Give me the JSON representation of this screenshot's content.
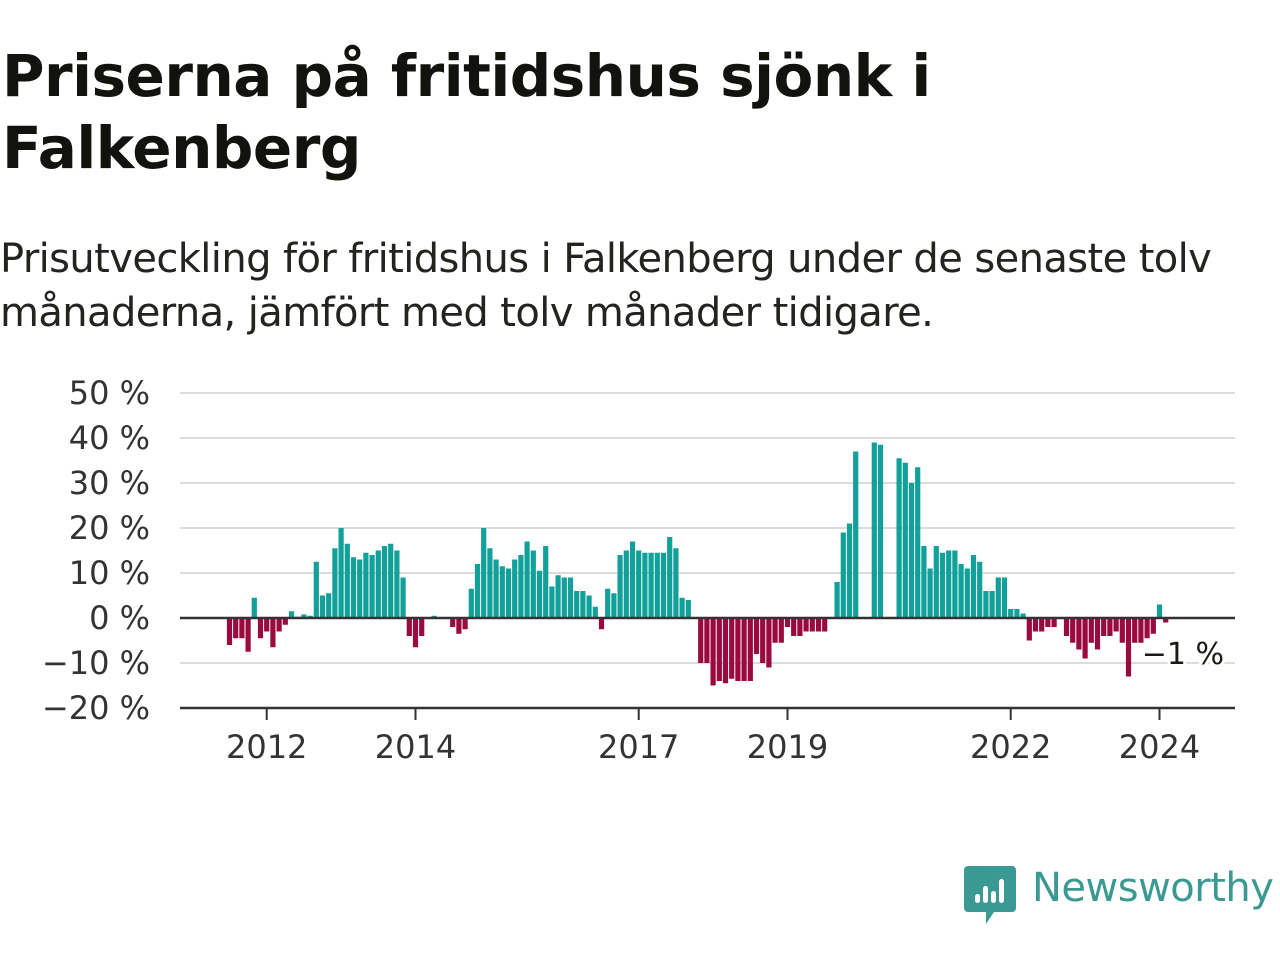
{
  "title": "Priserna på fritidshus sjönk i Falkenberg",
  "subtitle": "Prisutveckling för fritidshus i Falkenberg under de senaste tolv månaderna, jämfört med tolv månader tidigare.",
  "brand": {
    "name": "Newsworthy",
    "color": "#3a9a93"
  },
  "colors": {
    "positive": "#12a19a",
    "negative": "#9b0a3f",
    "grid": "#dcdcdc",
    "axis": "#333333"
  },
  "chart_data": {
    "type": "bar",
    "unit": "%",
    "ylim": [
      -20,
      50
    ],
    "yticks": [
      50,
      40,
      30,
      20,
      10,
      0,
      -10,
      -20
    ],
    "ytick_labels": [
      "50 %",
      "40 %",
      "30 %",
      "20 %",
      "10 %",
      "0 %",
      "−10 %",
      "−20 %"
    ],
    "xtick_labels": [
      "2012",
      "2014",
      "2017",
      "2019",
      "2022",
      "2024"
    ],
    "xtick_month_index": [
      6,
      30,
      66,
      90,
      126,
      150
    ],
    "grid": true,
    "end_label": "−1 %",
    "start": "2011-07",
    "frequency": "monthly",
    "values": [
      -6,
      -4.5,
      -4.5,
      -7.5,
      4.5,
      -4.5,
      -3,
      -6.5,
      -3,
      -1.5,
      1.5,
      0.3,
      0.8,
      0.5,
      12.5,
      5,
      5.5,
      15.5,
      20,
      16.5,
      13.5,
      13,
      14.5,
      14,
      15,
      16,
      16.5,
      15,
      9,
      -4,
      -6.5,
      -4,
      0,
      0.5,
      0,
      0,
      -2,
      -3.5,
      -2.5,
      6.5,
      12,
      20,
      15.5,
      13,
      11.5,
      11,
      13,
      14,
      17,
      15,
      10.5,
      16,
      7,
      9.5,
      9,
      9,
      6,
      6,
      5,
      2.5,
      -2.5,
      6.5,
      5.5,
      14,
      15,
      17,
      15,
      14.5,
      14.5,
      14.5,
      14.5,
      18,
      15.5,
      4.5,
      4,
      0,
      -10,
      -10,
      -15,
      -14,
      -14.5,
      -13.5,
      -14,
      -14,
      -14,
      -8,
      -10,
      -11,
      -5.5,
      -5.5,
      -2,
      -4,
      -4,
      -3,
      -3,
      -3,
      -3,
      0,
      8,
      19,
      21,
      37,
      0,
      0,
      39,
      38.5,
      0,
      0,
      35.5,
      34.5,
      30,
      33.5,
      16,
      11,
      16,
      14.5,
      15,
      15,
      12,
      11,
      14,
      12.5,
      6,
      6,
      9,
      9,
      2,
      2,
      1,
      -5,
      -3,
      -3,
      -2,
      -2,
      0,
      -4,
      -5.5,
      -7,
      -9,
      -5.5,
      -7,
      -4,
      -4,
      -3,
      -5.5,
      -13,
      -5.5,
      -5.5,
      -4.5,
      -3.5,
      3,
      -1
    ]
  }
}
